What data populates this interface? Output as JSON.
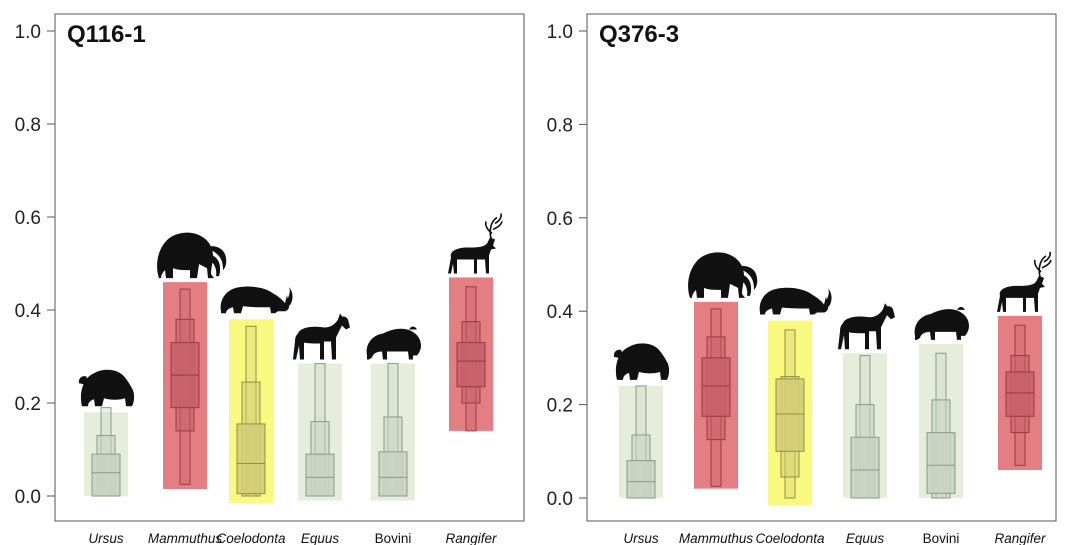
{
  "chart_data": [
    {
      "type": "bar",
      "title": "Q116-1",
      "ylim": [
        0,
        1.0
      ],
      "yticks": [
        "0.0",
        "0.2",
        "0.4",
        "0.6",
        "0.8",
        "1.0"
      ],
      "categories": [
        {
          "name": "Ursus",
          "italic": true,
          "icon": "bear-icon"
        },
        {
          "name": "Mammuthus",
          "italic": true,
          "icon": "mammoth-icon"
        },
        {
          "name": "Coelodonta",
          "italic": true,
          "icon": "rhino-icon"
        },
        {
          "name": "Equus",
          "italic": true,
          "icon": "horse-icon"
        },
        {
          "name": "Bovini",
          "italic": false,
          "icon": "bison-icon"
        },
        {
          "name": "Rangifer",
          "italic": true,
          "icon": "reindeer-icon"
        }
      ],
      "bars": [
        {
          "range": [
            0.0,
            0.18
          ],
          "color": "green",
          "quantiles": [
            0.0,
            0.0,
            0.0,
            0.05,
            0.09,
            0.13,
            0.19
          ]
        },
        {
          "range": [
            0.015,
            0.46
          ],
          "color": "red",
          "quantiles": [
            0.025,
            0.14,
            0.19,
            0.26,
            0.33,
            0.38,
            0.445
          ]
        },
        {
          "range": [
            -0.015,
            0.38
          ],
          "color": "yellow",
          "quantiles": [
            0.0,
            0.0,
            0.005,
            0.07,
            0.155,
            0.245,
            0.365
          ]
        },
        {
          "range": [
            -0.01,
            0.285
          ],
          "color": "green",
          "quantiles": [
            0.0,
            0.0,
            0.0,
            0.04,
            0.09,
            0.16,
            0.285
          ]
        },
        {
          "range": [
            -0.01,
            0.285
          ],
          "color": "green",
          "quantiles": [
            0.0,
            0.0,
            0.0,
            0.04,
            0.095,
            0.17,
            0.285
          ]
        },
        {
          "range": [
            0.14,
            0.47
          ],
          "color": "red",
          "quantiles": [
            0.14,
            0.2,
            0.235,
            0.29,
            0.33,
            0.375,
            0.45
          ]
        }
      ]
    },
    {
      "type": "bar",
      "title": "Q376-3",
      "ylim": [
        0,
        1.0
      ],
      "yticks": [
        "0.0",
        "0.2",
        "0.4",
        "0.6",
        "0.8",
        "1.0"
      ],
      "categories": [
        {
          "name": "Ursus",
          "italic": true,
          "icon": "bear-icon"
        },
        {
          "name": "Mammuthus",
          "italic": true,
          "icon": "mammoth-icon"
        },
        {
          "name": "Coelodonta",
          "italic": true,
          "icon": "rhino-icon"
        },
        {
          "name": "Equus",
          "italic": true,
          "icon": "horse-icon"
        },
        {
          "name": "Bovini",
          "italic": false,
          "icon": "bison-icon"
        },
        {
          "name": "Rangifer",
          "italic": true,
          "icon": "reindeer-icon"
        }
      ],
      "bars": [
        {
          "range": [
            0.0,
            0.24
          ],
          "color": "green",
          "quantiles": [
            0.0,
            0.0,
            0.0,
            0.035,
            0.08,
            0.135,
            0.24
          ]
        },
        {
          "range": [
            0.02,
            0.42
          ],
          "color": "red",
          "quantiles": [
            0.025,
            0.125,
            0.175,
            0.24,
            0.3,
            0.345,
            0.405
          ]
        },
        {
          "range": [
            -0.015,
            0.38
          ],
          "color": "yellow",
          "quantiles": [
            0.0,
            0.045,
            0.1,
            0.18,
            0.255,
            0.26,
            0.36
          ]
        },
        {
          "range": [
            0.0,
            0.31
          ],
          "color": "green",
          "quantiles": [
            0.0,
            0.0,
            0.0,
            0.06,
            0.13,
            0.2,
            0.305
          ]
        },
        {
          "range": [
            0.0,
            0.33
          ],
          "color": "green",
          "quantiles": [
            0.0,
            0.0,
            0.01,
            0.07,
            0.14,
            0.21,
            0.31
          ]
        },
        {
          "range": [
            0.06,
            0.39
          ],
          "color": "red",
          "quantiles": [
            0.07,
            0.14,
            0.175,
            0.225,
            0.27,
            0.305,
            0.37
          ]
        }
      ]
    }
  ],
  "colors": {
    "green_bg": "#e6eedb",
    "green_box": "#c9d3c2",
    "green_stroke": "#8a9a8a",
    "red_bg": "#e37f82",
    "red_box": "#c6626a",
    "red_stroke": "#9a3942",
    "yellow_bg": "#f9f980",
    "yellow_box": "#d3cd76",
    "yellow_stroke": "#928d4a",
    "axis": "#555555",
    "silhouette": "#111111"
  }
}
